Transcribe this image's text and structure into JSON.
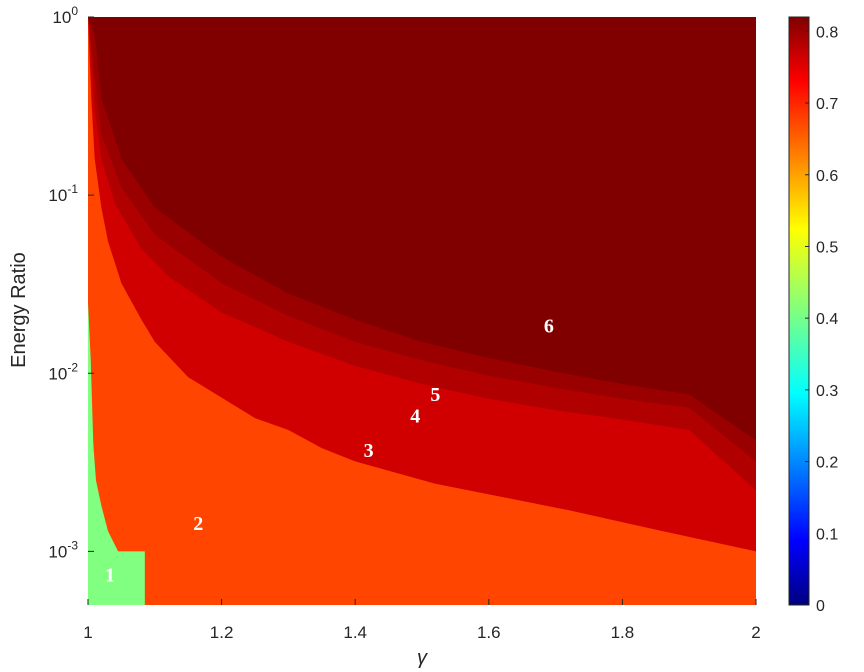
{
  "chart_data": {
    "type": "heatmap",
    "title": "",
    "xlabel": "γ",
    "ylabel": "Energy Ratio",
    "xlim": [
      1,
      2
    ],
    "ylim": [
      0.0005,
      1
    ],
    "yscale": "log",
    "x_ticks": [
      "1",
      "1.2",
      "1.4",
      "1.6",
      "1.8",
      "2"
    ],
    "y_ticks": [
      {
        "base": "10",
        "exp": "-3",
        "value": 0.001
      },
      {
        "base": "10",
        "exp": "-2",
        "value": 0.01
      },
      {
        "base": "10",
        "exp": "-1",
        "value": 0.1
      },
      {
        "base": "10",
        "exp": "0",
        "value": 1
      }
    ],
    "colorbar": {
      "colormap": "jet",
      "range": [
        0,
        0.82
      ],
      "ticks": [
        "0",
        "0.1",
        "0.2",
        "0.3",
        "0.4",
        "0.5",
        "0.6",
        "0.7",
        "0.8"
      ]
    },
    "regions": [
      {
        "label": "1",
        "color_value": 0.4,
        "color": "#80ff80",
        "label_at": [
          1.033,
          0.00072
        ],
        "upper_boundary": [
          [
            1.0,
            0.025
          ],
          [
            1.004,
            0.012
          ],
          [
            1.008,
            0.004
          ],
          [
            1.012,
            0.0025
          ],
          [
            1.02,
            0.0018
          ],
          [
            1.03,
            0.0013
          ],
          [
            1.045,
            0.001
          ],
          [
            1.085,
            0.001
          ],
          [
            1.085,
            0.0005
          ]
        ]
      },
      {
        "label": "2",
        "color_value": 0.64,
        "color": "#ff4500",
        "label_at": [
          1.165,
          0.0014
        ],
        "upper_boundary": [
          [
            1.0,
            1.0
          ],
          [
            1.005,
            0.35
          ],
          [
            1.01,
            0.16
          ],
          [
            1.02,
            0.085
          ],
          [
            1.03,
            0.055
          ],
          [
            1.05,
            0.032
          ],
          [
            1.08,
            0.02
          ],
          [
            1.1,
            0.015
          ],
          [
            1.15,
            0.0095
          ],
          [
            1.2,
            0.0073
          ],
          [
            1.25,
            0.0056
          ],
          [
            1.3,
            0.0048
          ],
          [
            1.35,
            0.0038
          ],
          [
            1.4,
            0.0032
          ],
          [
            1.52,
            0.0024
          ],
          [
            1.72,
            0.0017
          ],
          [
            1.86,
            0.0013
          ],
          [
            2.0,
            0.001
          ]
        ]
      },
      {
        "label": "3",
        "color_value": 0.72,
        "color": "#d00000",
        "label_at": [
          1.42,
          0.0036
        ],
        "upper_boundary": [
          [
            1.0,
            1.0
          ],
          [
            1.005,
            0.6
          ],
          [
            1.01,
            0.3
          ],
          [
            1.02,
            0.16
          ],
          [
            1.04,
            0.09
          ],
          [
            1.08,
            0.05
          ],
          [
            1.12,
            0.035
          ],
          [
            1.2,
            0.022
          ],
          [
            1.3,
            0.015
          ],
          [
            1.4,
            0.011
          ],
          [
            1.5,
            0.0087
          ],
          [
            1.6,
            0.0072
          ],
          [
            1.7,
            0.0062
          ],
          [
            1.8,
            0.0055
          ],
          [
            1.9,
            0.0048
          ],
          [
            2.0,
            0.0022
          ]
        ]
      },
      {
        "label": "4",
        "color_value": 0.76,
        "color": "#b00000",
        "label_at": [
          1.49,
          0.0056
        ],
        "upper_boundary": [
          [
            1.0,
            1.0
          ],
          [
            1.01,
            0.45
          ],
          [
            1.02,
            0.22
          ],
          [
            1.05,
            0.11
          ],
          [
            1.1,
            0.06
          ],
          [
            1.2,
            0.032
          ],
          [
            1.3,
            0.021
          ],
          [
            1.4,
            0.015
          ],
          [
            1.5,
            0.0118
          ],
          [
            1.6,
            0.0097
          ],
          [
            1.7,
            0.0083
          ],
          [
            1.8,
            0.0072
          ],
          [
            1.9,
            0.0064
          ],
          [
            2.0,
            0.0032
          ]
        ]
      },
      {
        "label": "5",
        "color_value": 0.78,
        "color": "#9a0000",
        "label_at": [
          1.52,
          0.0074
        ],
        "upper_boundary": [
          [
            1.0,
            1.0
          ],
          [
            1.01,
            0.8
          ],
          [
            1.02,
            0.35
          ],
          [
            1.05,
            0.16
          ],
          [
            1.1,
            0.085
          ],
          [
            1.2,
            0.045
          ],
          [
            1.3,
            0.028
          ],
          [
            1.4,
            0.02
          ],
          [
            1.5,
            0.015
          ],
          [
            1.6,
            0.0122
          ],
          [
            1.7,
            0.0102
          ],
          [
            1.8,
            0.0087
          ],
          [
            1.9,
            0.0076
          ],
          [
            2.0,
            0.0042
          ]
        ]
      },
      {
        "label": "6",
        "color_value": 0.8,
        "color": "#800000",
        "label_at": [
          1.69,
          0.018
        ],
        "upper_boundary": [
          [
            1.0,
            1.0
          ],
          [
            2.0,
            1.0
          ]
        ]
      }
    ]
  }
}
